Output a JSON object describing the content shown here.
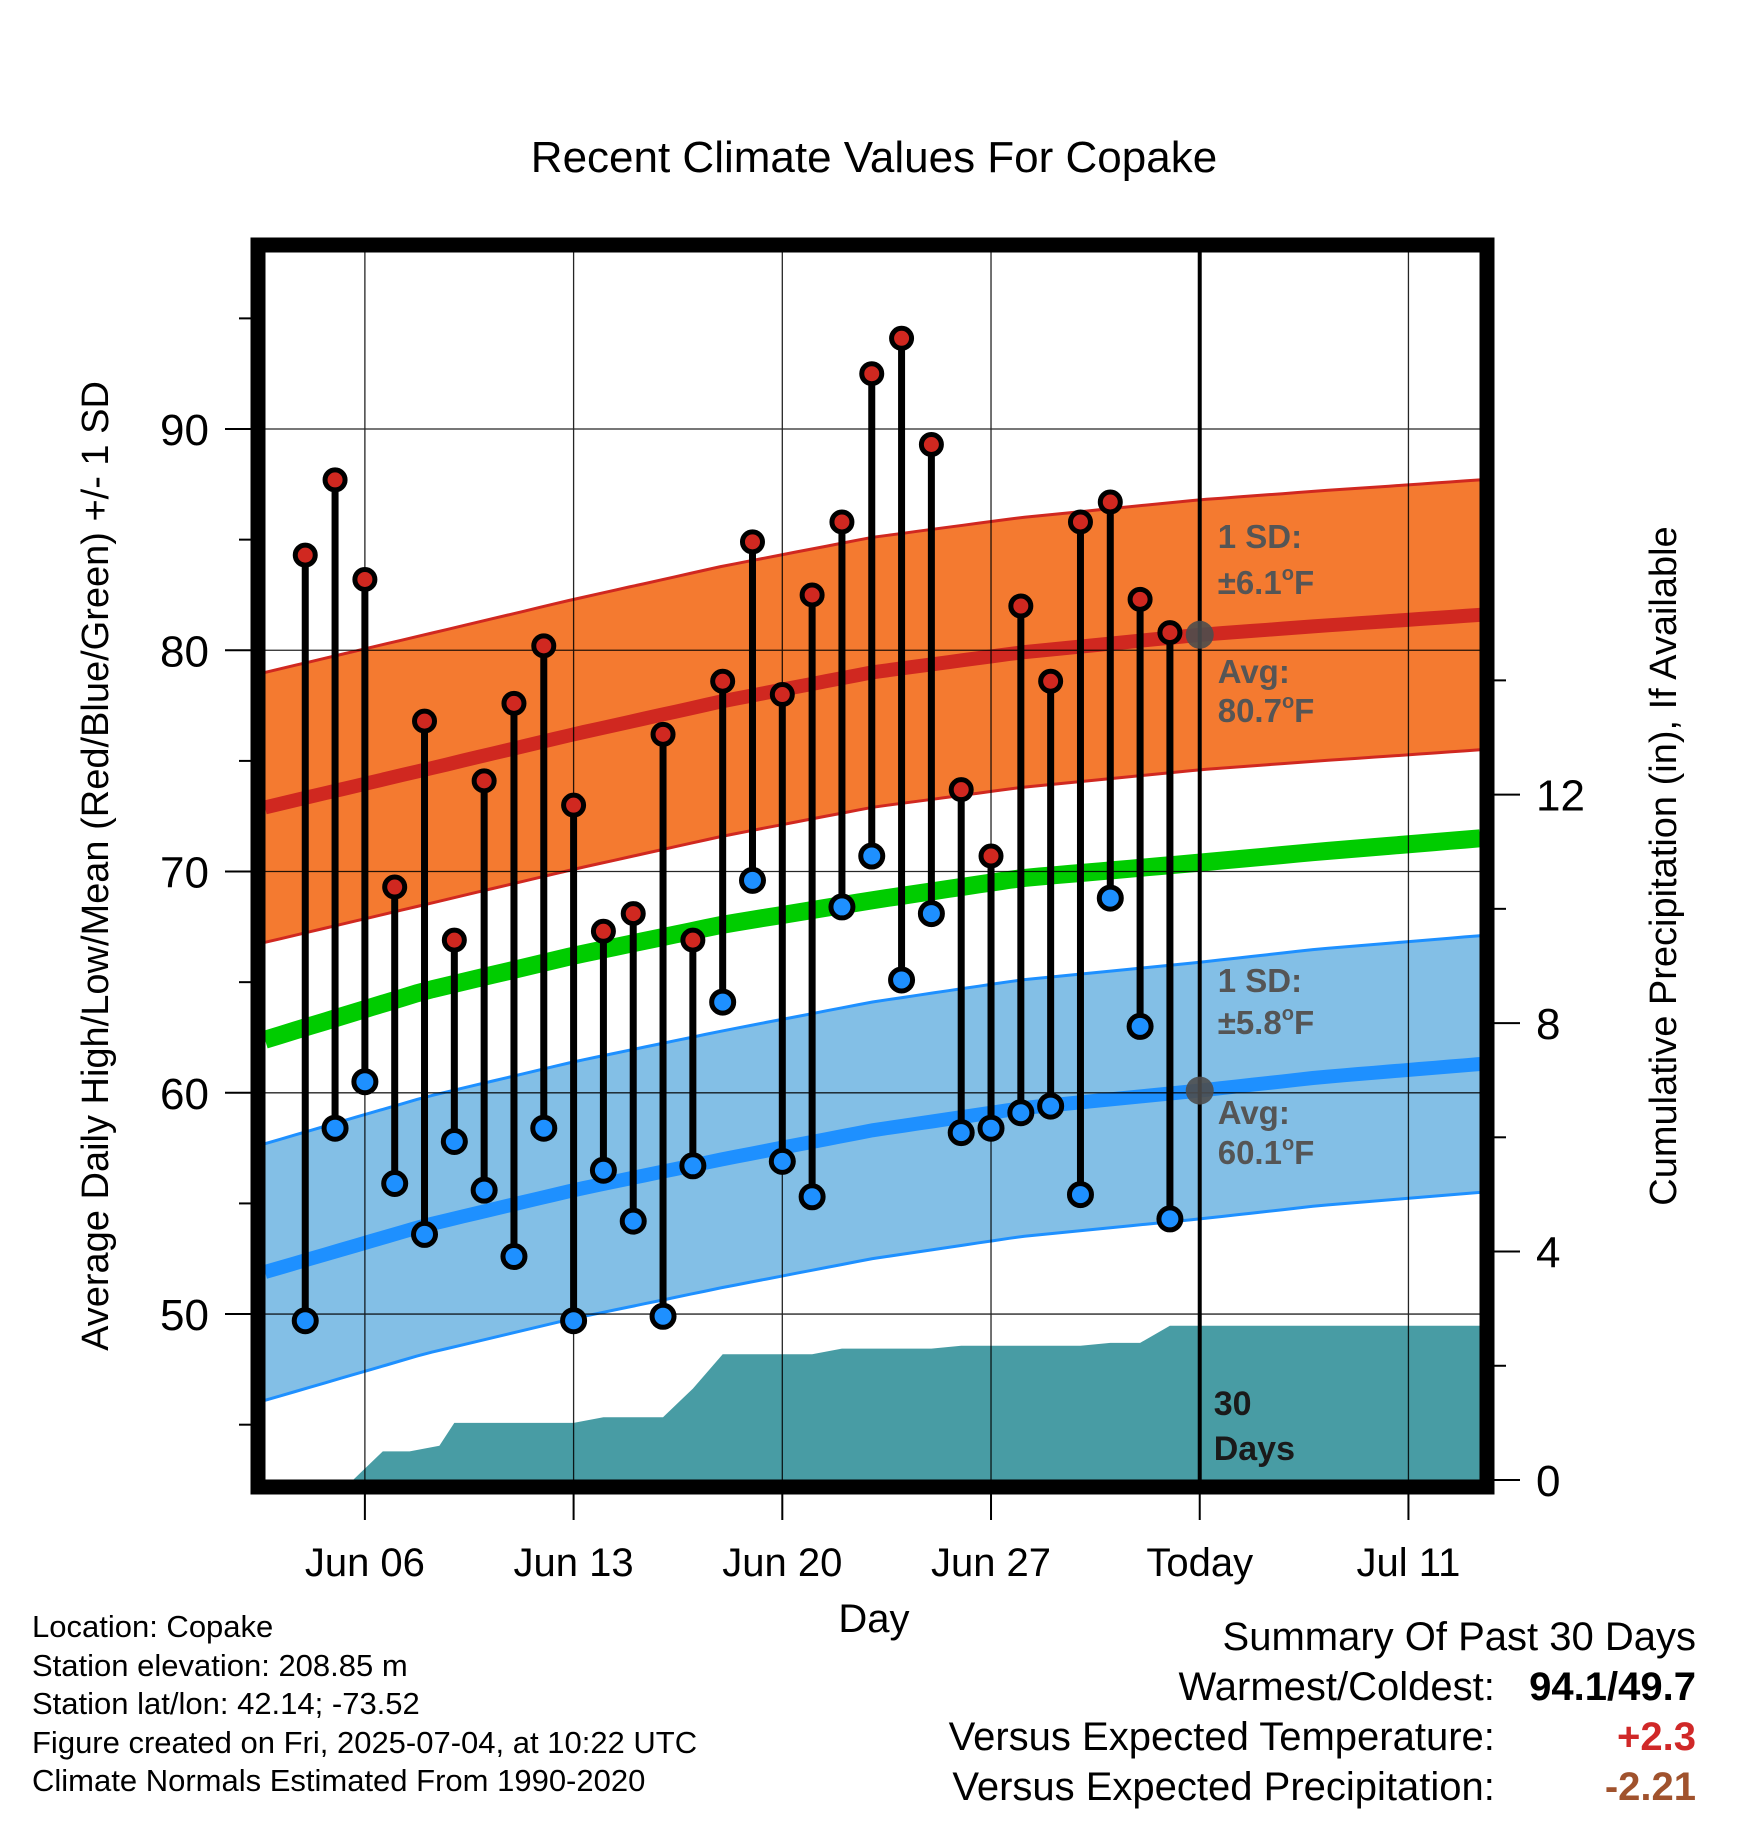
{
  "chart_data": {
    "type": "line",
    "title": "Recent Climate Values For Copake",
    "xlabel": "Day",
    "ylabel": "Average Daily High/Low/Mean (Red/Blue/Green) +/- 1 SD",
    "y2label": "Cumulative Precipitation (in), If Available",
    "ylim": [
      42.5,
      98
    ],
    "y2lim": [
      0,
      21.5
    ],
    "yticks": [
      50,
      60,
      70,
      80,
      90
    ],
    "y2ticks": [
      0,
      4,
      8,
      12
    ],
    "xticks": [
      {
        "day": 3,
        "label": "Jun 06"
      },
      {
        "day": 10,
        "label": "Jun 13"
      },
      {
        "day": 17,
        "label": "Jun 20"
      },
      {
        "day": 24,
        "label": "Jun 27"
      },
      {
        "day": 31,
        "label": "Today"
      },
      {
        "day": 38,
        "label": "Jul 11"
      }
    ],
    "xlim": [
      -0.35,
      40.4
    ],
    "today_day": 31,
    "days": [
      1,
      2,
      3,
      4,
      5,
      6,
      7,
      8,
      9,
      10,
      11,
      12,
      13,
      14,
      15,
      16,
      17,
      18,
      19,
      20,
      21,
      22,
      23,
      24,
      25,
      26,
      27,
      28,
      29,
      30
    ],
    "highs": [
      84.3,
      87.7,
      83.2,
      69.3,
      76.8,
      66.9,
      74.1,
      77.6,
      80.2,
      73.0,
      67.3,
      68.1,
      76.2,
      66.9,
      78.6,
      84.9,
      78.0,
      82.5,
      85.8,
      92.5,
      94.1,
      89.3,
      73.7,
      70.7,
      82.0,
      78.6,
      85.8,
      86.7,
      82.3,
      80.8
    ],
    "lows": [
      49.7,
      58.4,
      60.5,
      55.9,
      53.6,
      57.8,
      55.6,
      52.6,
      58.4,
      49.7,
      56.5,
      54.2,
      49.9,
      56.7,
      64.1,
      69.6,
      56.9,
      55.3,
      68.4,
      70.7,
      65.1,
      68.1,
      58.2,
      58.4,
      59.1,
      59.4,
      55.4,
      68.8,
      63.0,
      54.3
    ],
    "normal_high": {
      "day": [
        -0.35,
        5,
        10,
        15,
        20,
        25,
        31,
        35,
        40.4
      ],
      "avg": [
        72.9,
        74.6,
        76.2,
        77.7,
        79.0,
        79.9,
        80.7,
        81.1,
        81.6
      ],
      "sd": 6.1
    },
    "normal_low": {
      "day": [
        -0.35,
        5,
        10,
        15,
        20,
        25,
        31,
        35,
        40.4
      ],
      "avg": [
        51.9,
        54.0,
        55.6,
        57.0,
        58.3,
        59.3,
        60.1,
        60.7,
        61.3
      ],
      "sd": 5.8
    },
    "normal_mean": {
      "day": [
        -0.35,
        5,
        10,
        15,
        20,
        25,
        31,
        35,
        40.4
      ],
      "avg": [
        62.4,
        64.6,
        66.2,
        67.6,
        68.7,
        69.7,
        70.4,
        70.9,
        71.5
      ]
    },
    "precip": {
      "day": [
        2.6,
        3.6,
        4.5,
        5.5,
        6.0,
        7.0,
        8.0,
        9.0,
        10.0,
        11.0,
        12.0,
        13.0,
        14.0,
        15.0,
        16.0,
        17.0,
        18.0,
        19.0,
        20.0,
        21.0,
        22.0,
        23.0,
        24.0,
        25.0,
        26.0,
        27.0,
        28.0,
        29.0,
        30.0,
        31.0,
        40.4
      ],
      "cum": [
        0.0,
        0.5,
        0.5,
        0.6,
        1.0,
        1.0,
        1.0,
        1.0,
        1.0,
        1.1,
        1.1,
        1.1,
        1.6,
        2.2,
        2.2,
        2.2,
        2.2,
        2.3,
        2.3,
        2.3,
        2.3,
        2.35,
        2.35,
        2.35,
        2.35,
        2.35,
        2.4,
        2.4,
        2.7,
        2.7,
        2.7
      ]
    },
    "annotations": {
      "high_sd": "1 SD:",
      "high_sd_value": "±6.1",
      "high_avg": "Avg:",
      "high_avg_value": "80.7",
      "low_sd": "1 SD:",
      "low_sd_value": "±5.8",
      "low_avg": "Avg:",
      "low_avg_value": "60.1",
      "unit_degree": "o",
      "unit_letter": "F",
      "precip_days_1": "30",
      "precip_days_2": "Days"
    },
    "colors": {
      "high": "#d02820",
      "high_band": "#f47a30",
      "low": "#1e90ff",
      "low_band": "#83bfe6",
      "mean": "#00cc00",
      "precip": "#489ca4",
      "annot": "#555555"
    },
    "grid": true
  },
  "info": {
    "location": "Location: Copake",
    "elevation": "Station elevation: 208.85 m",
    "latlon": "Station lat/lon: 42.14; -73.52",
    "created": "Figure created on Fri, 2025-07-04, at 10:22 UTC",
    "normals": "Climate Normals Estimated From 1990-2020"
  },
  "summary": {
    "title": "Summary Of Past 30 Days",
    "warm_cold_label": "Warmest/Coldest:",
    "warm_cold_value": "94.1/49.7",
    "temp_label": "Versus Expected Temperature:",
    "temp_value": "+2.3",
    "temp_color": "#d02828",
    "precip_label": "Versus Expected Precipitation:",
    "precip_value": "-2.21",
    "precip_color": "#a0522d"
  }
}
